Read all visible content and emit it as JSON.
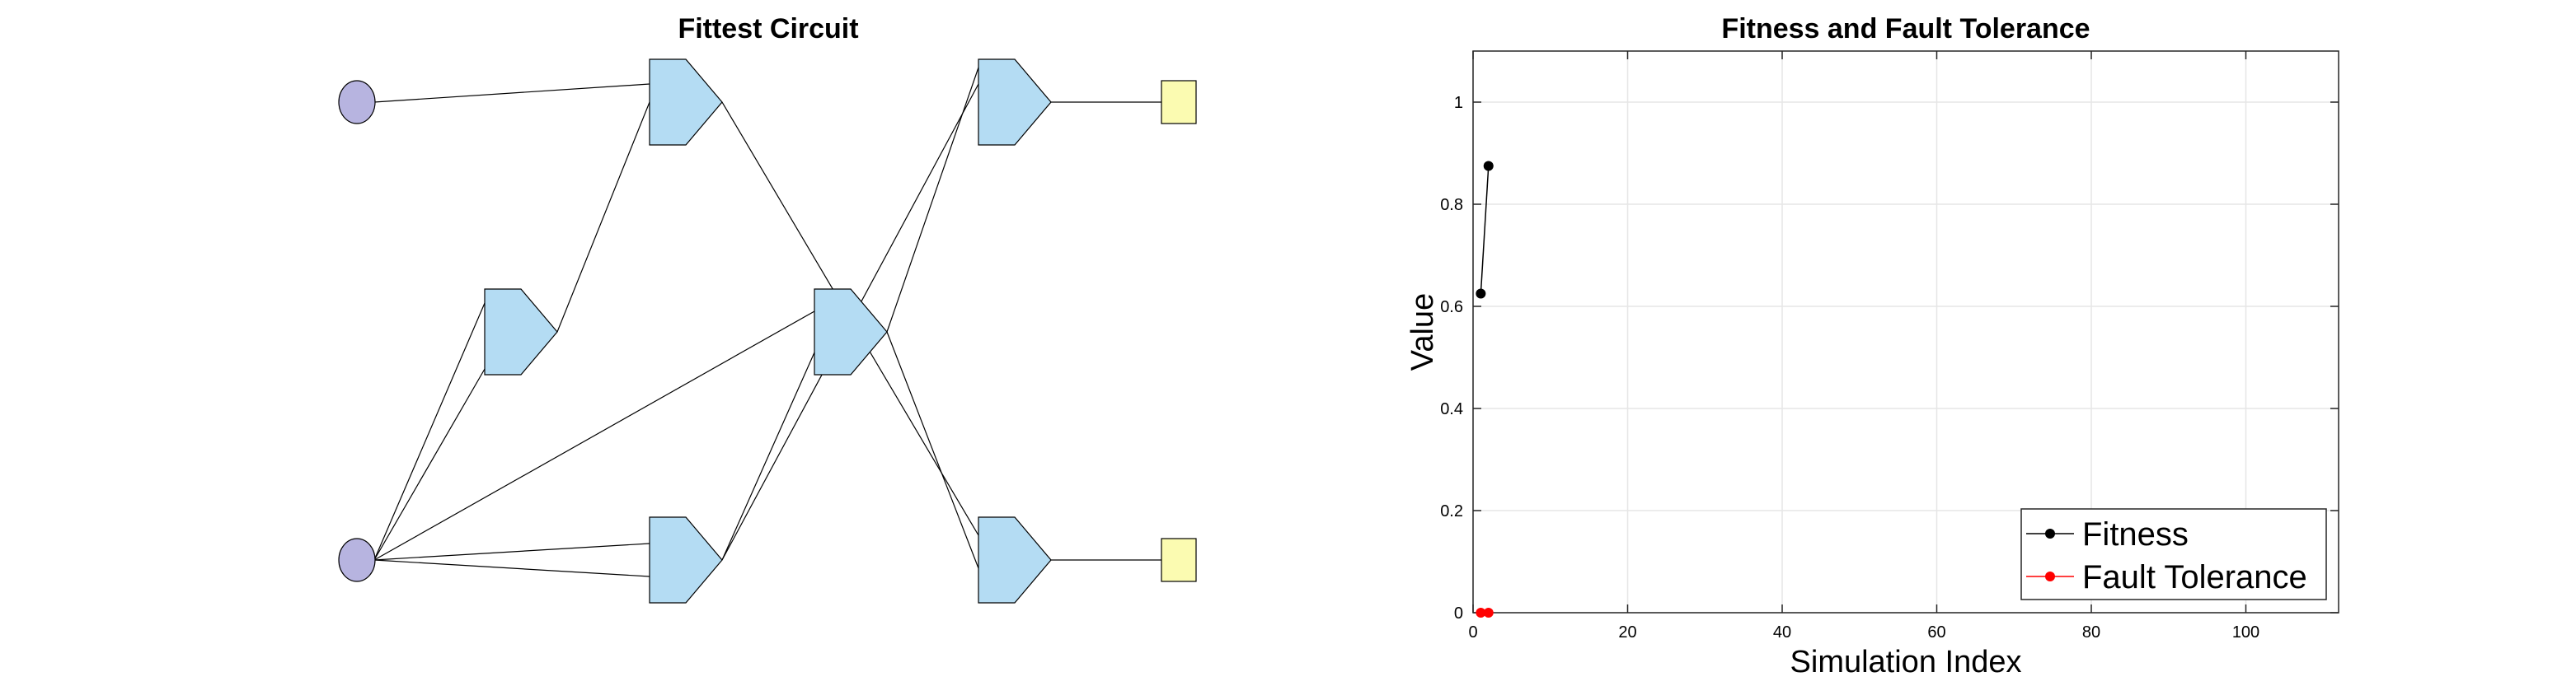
{
  "circuit": {
    "title": "Fittest Circuit",
    "colors": {
      "input": "#b7b4e0",
      "gate": "#b4dcf3",
      "output": "#fbfbb1"
    },
    "nodes": [
      {
        "id": "in1",
        "kind": "input",
        "icon": "ellipse"
      },
      {
        "id": "in2",
        "kind": "input",
        "icon": "ellipse"
      },
      {
        "id": "g_mid_left",
        "kind": "gate",
        "icon": "pentagon"
      },
      {
        "id": "g_top",
        "kind": "gate",
        "icon": "pentagon"
      },
      {
        "id": "g_bottom",
        "kind": "gate",
        "icon": "pentagon"
      },
      {
        "id": "g_center",
        "kind": "gate",
        "icon": "pentagon"
      },
      {
        "id": "g_out_top",
        "kind": "gate",
        "icon": "pentagon"
      },
      {
        "id": "g_out_bottom",
        "kind": "gate",
        "icon": "pentagon"
      },
      {
        "id": "out1",
        "kind": "output",
        "icon": "square"
      },
      {
        "id": "out2",
        "kind": "output",
        "icon": "square"
      }
    ],
    "edges": [
      [
        "in1",
        "g_top"
      ],
      [
        "in2",
        "g_mid_left"
      ],
      [
        "in2",
        "g_mid_left"
      ],
      [
        "g_mid_left",
        "g_top"
      ],
      [
        "in2",
        "g_center"
      ],
      [
        "in2",
        "g_bottom"
      ],
      [
        "in2",
        "g_bottom"
      ],
      [
        "g_top",
        "g_out_bottom"
      ],
      [
        "g_center",
        "g_out_bottom"
      ],
      [
        "g_center",
        "g_out_top"
      ],
      [
        "g_bottom",
        "g_out_top"
      ],
      [
        "g_bottom",
        "g_center"
      ],
      [
        "g_out_top",
        "out1"
      ],
      [
        "g_out_bottom",
        "out2"
      ]
    ]
  },
  "chart_data": {
    "type": "line",
    "title": "Fitness and Fault Tolerance",
    "xlabel": "Simulation Index",
    "ylabel": "Value",
    "xlim": [
      0,
      112
    ],
    "ylim": [
      0,
      1.1
    ],
    "xticks": [
      0,
      20,
      40,
      60,
      80,
      100
    ],
    "yticks": [
      0,
      0.2,
      0.4,
      0.6,
      0.8,
      1
    ],
    "xtick_labels": [
      "0",
      "20",
      "40",
      "60",
      "80",
      "100"
    ],
    "ytick_labels": [
      "0",
      "0.2",
      "0.4",
      "0.6",
      "0.8",
      "1"
    ],
    "grid": true,
    "legend_position": "bottom-right",
    "series": [
      {
        "name": "Fitness",
        "color": "#000000",
        "x": [
          1,
          2
        ],
        "y": [
          0.625,
          0.875
        ]
      },
      {
        "name": "Fault Tolerance",
        "color": "#ff0000",
        "x": [
          1,
          2
        ],
        "y": [
          0,
          0
        ]
      }
    ]
  }
}
